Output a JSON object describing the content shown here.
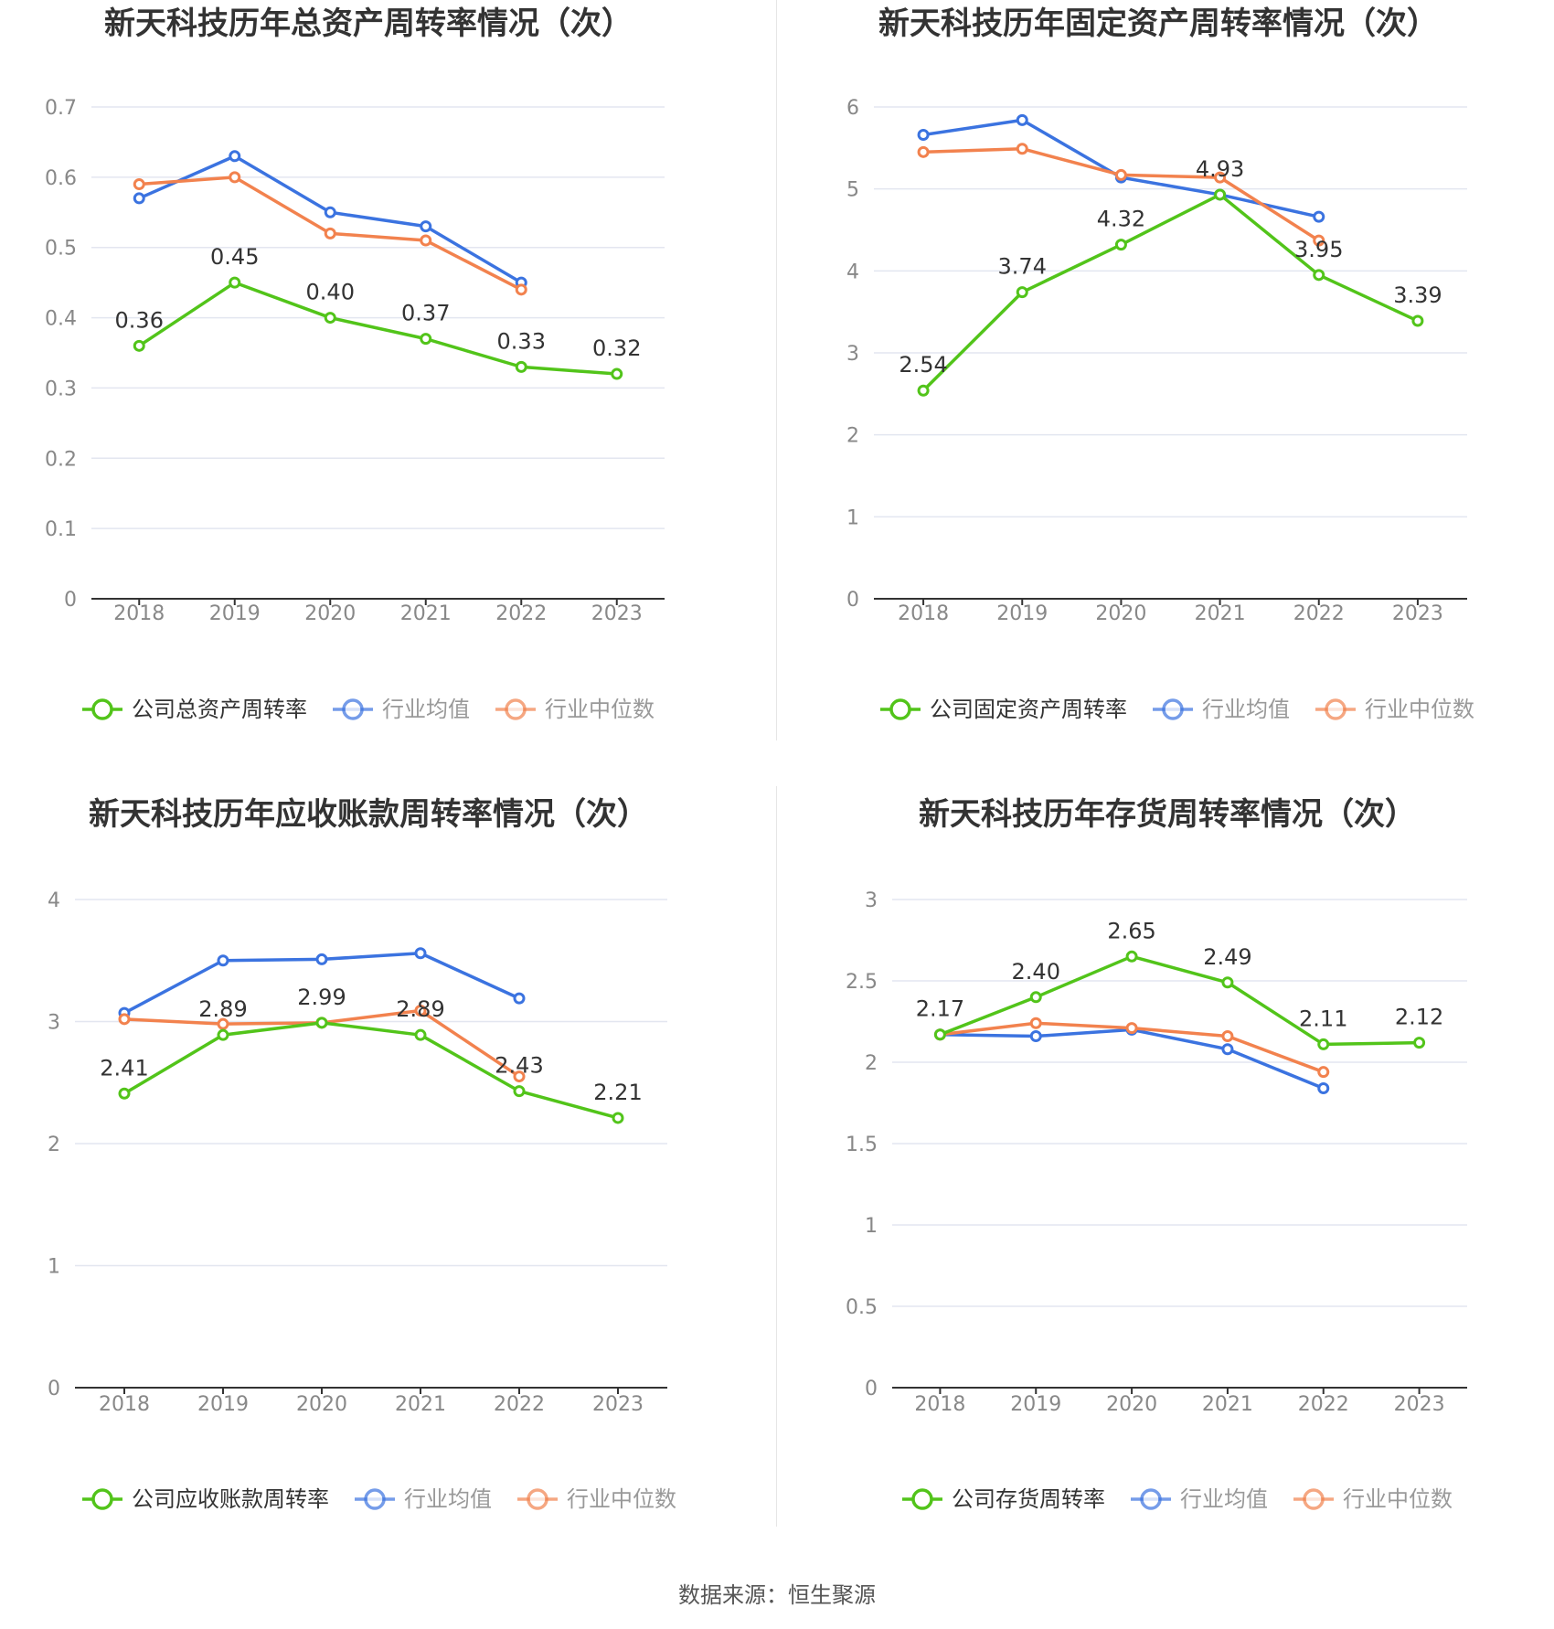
{
  "source_text": "数据来源：恒生聚源",
  "colors": {
    "company": "#52c41a",
    "avg": "#3b73e0",
    "median": "#f2824e",
    "grid": "#e3e6f0",
    "axis": "#333333",
    "tick": "#888888",
    "title": "#333333"
  },
  "chart_data": [
    {
      "type": "line",
      "title": "新天科技历年总资产周转率情况（次）",
      "categories": [
        "2018",
        "2019",
        "2020",
        "2021",
        "2022",
        "2023"
      ],
      "ylim": [
        0,
        0.7
      ],
      "yticks": [
        "0",
        "0.1",
        "0.2",
        "0.3",
        "0.4",
        "0.5",
        "0.6",
        "0.7"
      ],
      "series": [
        {
          "name": "公司总资产周转率",
          "key": "company",
          "values": [
            0.36,
            0.45,
            0.4,
            0.37,
            0.33,
            0.32
          ],
          "labels": [
            "0.36",
            "0.45",
            "0.40",
            "0.37",
            "0.33",
            "0.32"
          ]
        },
        {
          "name": "行业均值",
          "key": "avg",
          "values": [
            0.57,
            0.63,
            0.55,
            0.53,
            0.45,
            null
          ]
        },
        {
          "name": "行业中位数",
          "key": "median",
          "values": [
            0.59,
            0.6,
            0.52,
            0.51,
            0.44,
            null
          ]
        }
      ],
      "legend": "bottom"
    },
    {
      "type": "line",
      "title": "新天科技历年固定资产周转率情况（次）",
      "categories": [
        "2018",
        "2019",
        "2020",
        "2021",
        "2022",
        "2023"
      ],
      "ylim": [
        0,
        6
      ],
      "yticks": [
        "0",
        "1",
        "2",
        "3",
        "4",
        "5",
        "6"
      ],
      "series": [
        {
          "name": "公司固定资产周转率",
          "key": "company",
          "values": [
            2.54,
            3.74,
            4.32,
            4.93,
            3.95,
            3.39
          ],
          "labels": [
            "2.54",
            "3.74",
            "4.32",
            "4.93",
            "3.95",
            "3.39"
          ]
        },
        {
          "name": "行业均值",
          "key": "avg",
          "values": [
            5.66,
            5.84,
            5.14,
            4.93,
            4.66,
            null
          ]
        },
        {
          "name": "行业中位数",
          "key": "median",
          "values": [
            5.45,
            5.49,
            5.17,
            5.14,
            4.37,
            null
          ]
        }
      ],
      "legend": "bottom"
    },
    {
      "type": "line",
      "title": "新天科技历年应收账款周转率情况（次）",
      "categories": [
        "2018",
        "2019",
        "2020",
        "2021",
        "2022",
        "2023"
      ],
      "ylim": [
        0,
        4
      ],
      "yticks": [
        "0",
        "1",
        "2",
        "3",
        "4"
      ],
      "series": [
        {
          "name": "公司应收账款周转率",
          "key": "company",
          "values": [
            2.41,
            2.89,
            2.99,
            2.89,
            2.43,
            2.21
          ],
          "labels": [
            "2.41",
            "2.89",
            "2.99",
            "2.89",
            "2.43",
            "2.21"
          ]
        },
        {
          "name": "行业均值",
          "key": "avg",
          "values": [
            3.07,
            3.5,
            3.51,
            3.56,
            3.19,
            null
          ]
        },
        {
          "name": "行业中位数",
          "key": "median",
          "values": [
            3.02,
            2.98,
            2.99,
            3.09,
            2.55,
            null
          ]
        }
      ],
      "legend": "bottom"
    },
    {
      "type": "line",
      "title": "新天科技历年存货周转率情况（次）",
      "categories": [
        "2018",
        "2019",
        "2020",
        "2021",
        "2022",
        "2023"
      ],
      "ylim": [
        0,
        3
      ],
      "yticks": [
        "0",
        "0.5",
        "1",
        "1.5",
        "2",
        "2.5",
        "3"
      ],
      "series": [
        {
          "name": "公司存货周转率",
          "key": "company",
          "values": [
            2.17,
            2.4,
            2.65,
            2.49,
            2.11,
            2.12
          ],
          "labels": [
            "2.17",
            "2.40",
            "2.65",
            "2.49",
            "2.11",
            "2.12"
          ]
        },
        {
          "name": "行业均值",
          "key": "avg",
          "values": [
            2.17,
            2.16,
            2.2,
            2.08,
            1.84,
            null
          ]
        },
        {
          "name": "行业中位数",
          "key": "median",
          "values": [
            2.17,
            2.24,
            2.21,
            2.16,
            1.94,
            null
          ]
        }
      ],
      "legend": "bottom"
    }
  ]
}
